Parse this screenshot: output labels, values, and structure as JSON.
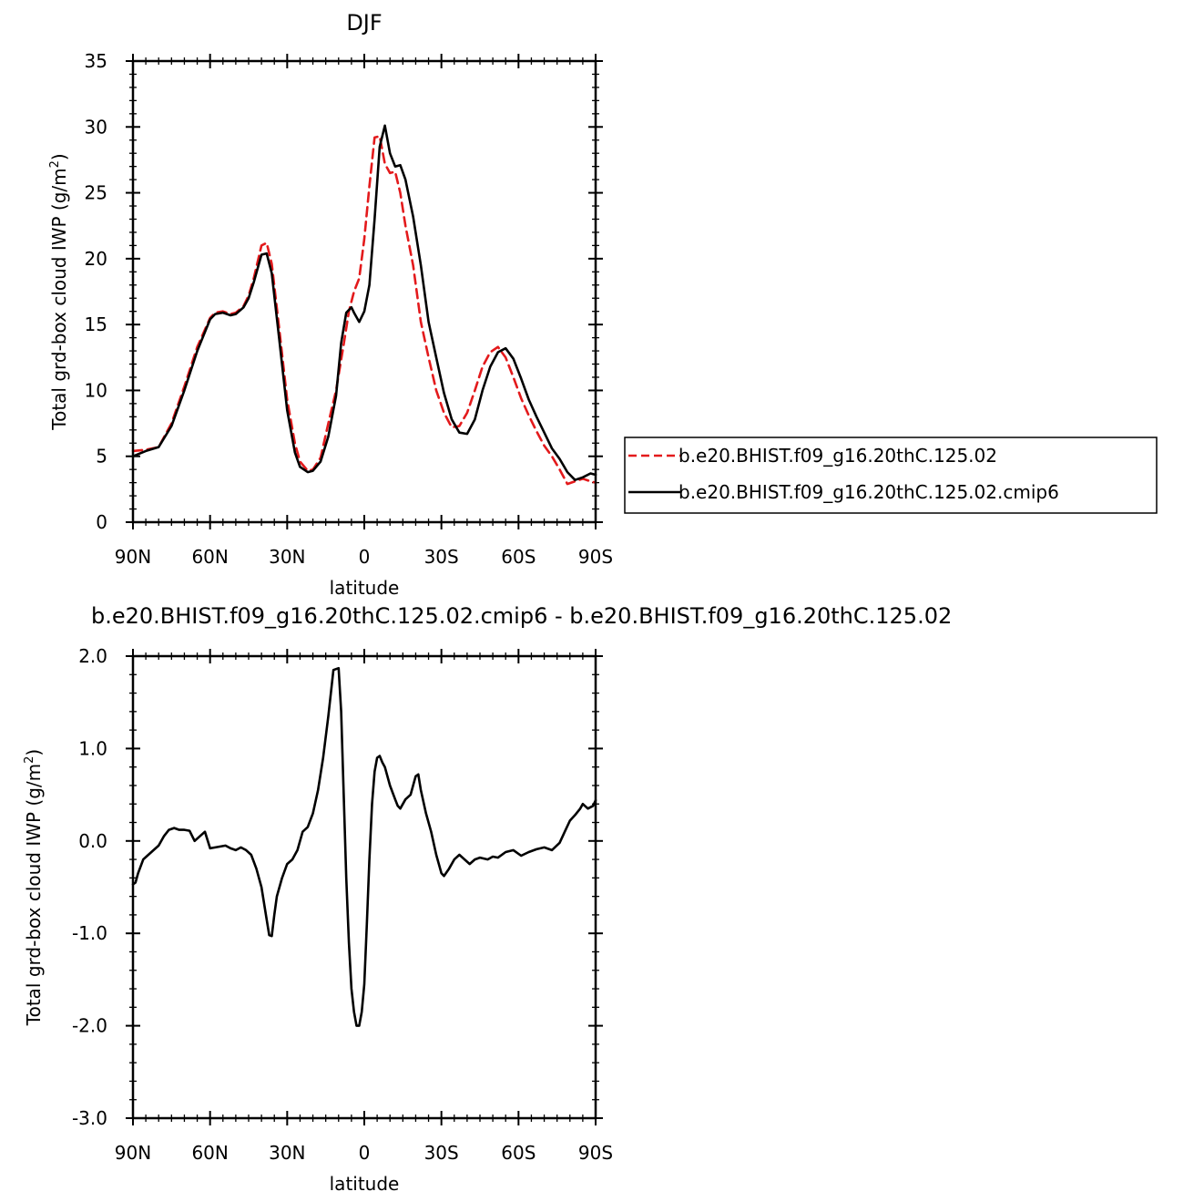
{
  "chart_data": [
    {
      "type": "line",
      "title": "DJF",
      "xlabel": "latitude",
      "ylabel": "Total grd-box cloud IWP (g/m",
      "ylabel_sup": "2",
      "ylabel_close": ")",
      "xlim": [
        90,
        -90
      ],
      "ylim": [
        0,
        35
      ],
      "x_ticks": [
        90,
        60,
        30,
        0,
        -30,
        -60,
        -90
      ],
      "x_tick_labels": [
        "90N",
        "60N",
        "30N",
        "0",
        "30S",
        "60S",
        "90S"
      ],
      "y_ticks": [
        0,
        5,
        10,
        15,
        20,
        25,
        30,
        35
      ],
      "y_tick_labels": [
        "0",
        "5",
        "10",
        "15",
        "20",
        "25",
        "30",
        "35"
      ],
      "legend_position": "right",
      "series": [
        {
          "name": "b.e20.BHIST.f09_g16.20thC.125.02",
          "color": "#e31a1c",
          "dash": "dashed",
          "x": [
            90,
            85,
            80,
            75,
            70,
            65,
            60,
            58,
            55,
            52,
            50,
            47,
            45,
            43,
            40,
            38,
            36,
            33,
            30,
            27,
            25,
            22,
            20,
            17,
            14,
            11,
            8,
            6,
            4,
            2,
            0,
            -2,
            -4,
            -6,
            -8,
            -10,
            -12,
            -14,
            -16,
            -19,
            -22,
            -25,
            -28,
            -31,
            -34,
            -37,
            -40,
            -43,
            -46,
            -49,
            -52,
            -55,
            -58,
            -61,
            -64,
            -67,
            -70,
            -73,
            -76,
            -79,
            -82,
            -85,
            -88,
            -90
          ],
          "y": [
            5.4,
            5.5,
            5.7,
            7.5,
            10.3,
            13.3,
            15.5,
            15.9,
            16.0,
            15.8,
            15.9,
            16.4,
            17.2,
            18.5,
            21.0,
            21.2,
            19.6,
            14.5,
            9.3,
            6.0,
            4.6,
            3.9,
            4.0,
            4.9,
            7.5,
            10.0,
            13.5,
            16.0,
            17.5,
            18.5,
            21.5,
            25.5,
            29.2,
            29.3,
            27.2,
            26.5,
            26.6,
            25.0,
            22.5,
            19.5,
            15.2,
            12.5,
            10.0,
            8.3,
            7.2,
            7.3,
            8.3,
            10.0,
            11.8,
            12.9,
            13.3,
            12.5,
            11.0,
            9.4,
            8.1,
            6.9,
            5.8,
            5.0,
            4.0,
            2.9,
            3.1,
            3.3,
            3.1,
            3.0
          ]
        },
        {
          "name": "b.e20.BHIST.f09_g16.20thC.125.02.cmip6",
          "color": "#000000",
          "dash": "solid",
          "x": [
            90,
            85,
            80,
            75,
            70,
            65,
            60,
            58,
            55,
            52,
            50,
            47,
            45,
            43,
            40,
            38,
            36,
            33,
            30,
            27,
            25,
            22,
            20,
            17,
            14,
            11,
            9,
            7,
            5,
            4,
            2,
            0,
            -2,
            -4,
            -6,
            -8,
            -10,
            -12,
            -14,
            -16,
            -19,
            -22,
            -25,
            -28,
            -31,
            -34,
            -37,
            -40,
            -43,
            -46,
            -49,
            -52,
            -55,
            -58,
            -61,
            -64,
            -67,
            -70,
            -73,
            -76,
            -79,
            -82,
            -85,
            -88,
            -90
          ],
          "y": [
            5.0,
            5.4,
            5.7,
            7.3,
            10.0,
            13.0,
            15.4,
            15.8,
            15.9,
            15.7,
            15.8,
            16.3,
            17.0,
            18.2,
            20.3,
            20.4,
            18.9,
            13.7,
            8.5,
            5.3,
            4.2,
            3.8,
            3.9,
            4.6,
            6.5,
            9.6,
            13.6,
            15.9,
            16.3,
            15.9,
            15.2,
            16.0,
            18.0,
            23.0,
            28.5,
            30.1,
            28.0,
            27.0,
            27.1,
            26.0,
            23.2,
            19.5,
            15.2,
            12.5,
            9.8,
            7.8,
            6.8,
            6.7,
            7.8,
            10.0,
            11.8,
            12.9,
            13.2,
            12.4,
            10.9,
            9.3,
            8.0,
            6.8,
            5.6,
            4.8,
            3.8,
            3.2,
            3.4,
            3.7,
            3.6
          ]
        }
      ]
    },
    {
      "type": "line",
      "title": "b.e20.BHIST.f09_g16.20thC.125.02.cmip6 - b.e20.BHIST.f09_g16.20thC.125.02",
      "xlabel": "latitude",
      "ylabel": "Total grd-box cloud IWP (g/m",
      "ylabel_sup": "2",
      "ylabel_close": ")",
      "xlim": [
        90,
        -90
      ],
      "ylim": [
        -3,
        2
      ],
      "x_ticks": [
        90,
        60,
        30,
        0,
        -30,
        -60,
        -90
      ],
      "x_tick_labels": [
        "90N",
        "60N",
        "30N",
        "0",
        "30S",
        "60S",
        "90S"
      ],
      "y_ticks": [
        -3,
        -2,
        -1,
        0,
        1,
        2
      ],
      "y_tick_labels": [
        "-3.0",
        "-2.0",
        "-1.0",
        "0.0",
        "1.0",
        "2.0"
      ],
      "series": [
        {
          "color": "#000000",
          "dash": "solid",
          "x": [
            90,
            89,
            88,
            86,
            84,
            82,
            80,
            78,
            76,
            74,
            72,
            70,
            68,
            66,
            64,
            62,
            60,
            58,
            56,
            54,
            52,
            50,
            48,
            46,
            44,
            42,
            40,
            38,
            37,
            36,
            35,
            34,
            32,
            30,
            28,
            26,
            24,
            22,
            20,
            18,
            16,
            14,
            12,
            10,
            9,
            8,
            7,
            6,
            5,
            4,
            3,
            2,
            1,
            0,
            -1,
            -2,
            -3,
            -4,
            -5,
            -6,
            -7,
            -8,
            -10,
            -12,
            -13,
            -14,
            -16,
            -18,
            -20,
            -21,
            -22,
            -24,
            -26,
            -28,
            -30,
            -31,
            -33,
            -35,
            -37,
            -39,
            -41,
            -43,
            -45,
            -48,
            -50,
            -52,
            -55,
            -58,
            -61,
            -64,
            -67,
            -70,
            -73,
            -76,
            -78,
            -80,
            -82,
            -84,
            -85,
            -87,
            -89,
            -90
          ],
          "y": [
            -0.47,
            -0.45,
            -0.35,
            -0.2,
            -0.15,
            -0.1,
            -0.05,
            0.05,
            0.12,
            0.14,
            0.12,
            0.12,
            0.11,
            0.0,
            0.05,
            0.1,
            -0.08,
            -0.07,
            -0.06,
            -0.05,
            -0.08,
            -0.1,
            -0.07,
            -0.1,
            -0.15,
            -0.3,
            -0.5,
            -0.85,
            -1.02,
            -1.03,
            -0.8,
            -0.6,
            -0.4,
            -0.25,
            -0.2,
            -0.1,
            0.1,
            0.15,
            0.3,
            0.55,
            0.9,
            1.35,
            1.85,
            1.87,
            1.4,
            0.5,
            -0.4,
            -1.1,
            -1.6,
            -1.85,
            -2.0,
            -2.0,
            -1.85,
            -1.55,
            -0.9,
            -0.2,
            0.4,
            0.75,
            0.9,
            0.92,
            0.85,
            0.8,
            0.6,
            0.45,
            0.38,
            0.35,
            0.45,
            0.5,
            0.7,
            0.72,
            0.55,
            0.3,
            0.1,
            -0.15,
            -0.35,
            -0.38,
            -0.3,
            -0.2,
            -0.15,
            -0.2,
            -0.25,
            -0.2,
            -0.18,
            -0.2,
            -0.17,
            -0.18,
            -0.12,
            -0.1,
            -0.16,
            -0.12,
            -0.09,
            -0.07,
            -0.1,
            -0.02,
            0.1,
            0.22,
            0.28,
            0.35,
            0.4,
            0.35,
            0.38,
            0.44
          ]
        }
      ]
    }
  ]
}
